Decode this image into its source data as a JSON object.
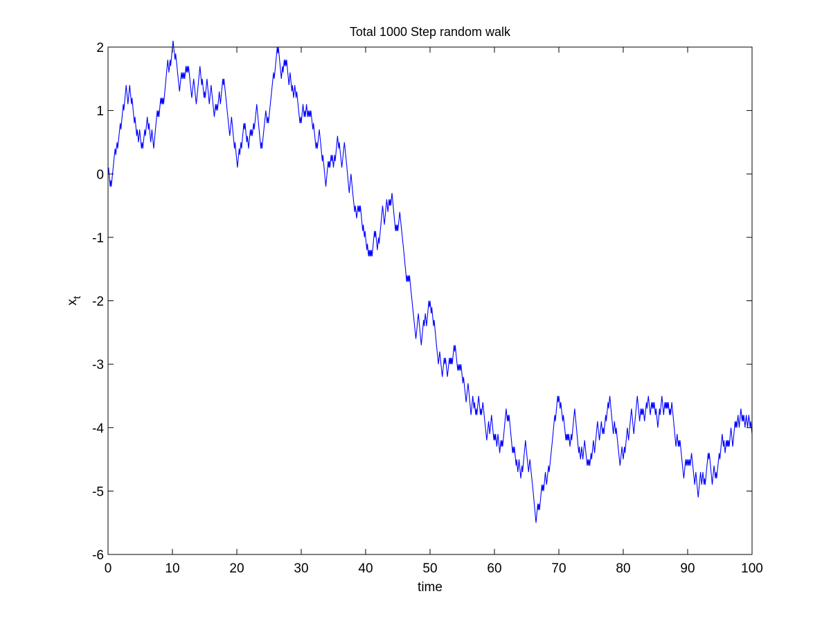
{
  "chart_data": {
    "type": "line",
    "title": "Total 1000 Step random walk",
    "xlabel": "time",
    "ylabel_main": "x",
    "ylabel_sub": "t",
    "xlim": [
      0,
      100
    ],
    "ylim": [
      -6,
      2
    ],
    "xticks": [
      0,
      10,
      20,
      30,
      40,
      50,
      60,
      70,
      80,
      90,
      100
    ],
    "yticks": [
      -6,
      -5,
      -4,
      -3,
      -2,
      -1,
      0,
      1,
      2
    ],
    "grid": false,
    "legend": "none",
    "step_size": 0.1,
    "series": [
      {
        "color": "#0000ff",
        "x": [
          0,
          0.5,
          1,
          2,
          3,
          4,
          5,
          6,
          7,
          8,
          9,
          10,
          11,
          12,
          13,
          14,
          15,
          16,
          17,
          18,
          19,
          20,
          21,
          22,
          23,
          24,
          25,
          26,
          27,
          28,
          29,
          30,
          31,
          32,
          33,
          34,
          35,
          36,
          37,
          38,
          39,
          40,
          41,
          42,
          43,
          44,
          45,
          46,
          47,
          48,
          49,
          50,
          51,
          52,
          53,
          54,
          55,
          56,
          57,
          58,
          59,
          60,
          61,
          62,
          63,
          64,
          65,
          66,
          67,
          68,
          69,
          70,
          71,
          72,
          73,
          74,
          75,
          76,
          77,
          78,
          79,
          80,
          81,
          82,
          83,
          84,
          85,
          86,
          87,
          88,
          89,
          90,
          91,
          92,
          93,
          94,
          95,
          96,
          97,
          98,
          99,
          100
        ],
        "y": [
          0,
          -0.2,
          0.3,
          0.7,
          1.2,
          0.9,
          0.6,
          0.8,
          0.5,
          1.0,
          1.5,
          2.0,
          1.4,
          1.6,
          1.2,
          1.4,
          1.3,
          1.4,
          1.0,
          1.5,
          0.7,
          0.2,
          0.7,
          0.6,
          1.0,
          0.5,
          0.9,
          1.7,
          1.6,
          1.5,
          1.4,
          0.8,
          0.9,
          0.7,
          0.5,
          0.0,
          0.1,
          0.4,
          0.2,
          -0.3,
          -0.5,
          -1.0,
          -1.3,
          -1.0,
          -0.7,
          -0.4,
          -0.9,
          -1.3,
          -1.8,
          -2.4,
          -2.3,
          -2.0,
          -2.7,
          -3.1,
          -2.9,
          -2.8,
          -3.2,
          -3.4,
          -3.7,
          -3.8,
          -4.0,
          -4.1,
          -4.2,
          -3.9,
          -4.4,
          -4.7,
          -4.4,
          -5.0,
          -5.3,
          -4.8,
          -4.2,
          -3.5,
          -4.1,
          -4.2,
          -4.3,
          -4.2,
          -4.4,
          -3.9,
          -4.1,
          -3.6,
          -4.1,
          -4.5,
          -4.0,
          -3.7,
          -3.8,
          -3.6,
          -3.8,
          -3.5,
          -3.6,
          -4.1,
          -4.4,
          -4.6,
          -4.8,
          -4.7,
          -4.6,
          -4.7,
          -4.5,
          -4.2,
          -4.3,
          -4.0,
          -3.9,
          -4.1
        ]
      }
    ]
  }
}
